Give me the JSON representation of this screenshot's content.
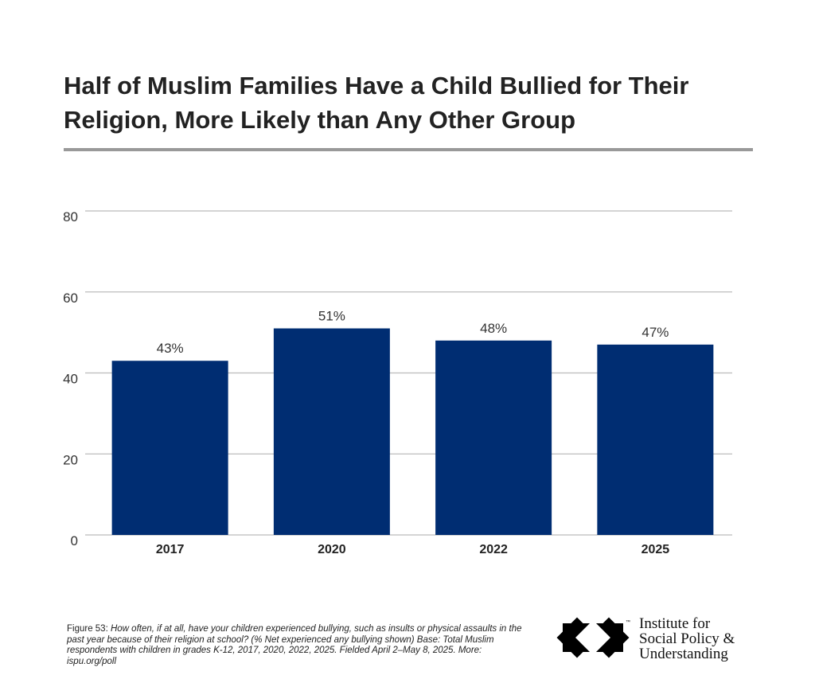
{
  "title": "Half of Muslim Families Have a Child Bullied for Their Religion, More Likely than Any Other Group",
  "chart_data": {
    "type": "bar",
    "categories": [
      "2017",
      "2020",
      "2022",
      "2025"
    ],
    "values": [
      43,
      51,
      48,
      47
    ],
    "data_labels": [
      "43%",
      "51%",
      "48%",
      "47%"
    ],
    "ylim": [
      0,
      80
    ],
    "yticks": [
      0,
      20,
      40,
      60,
      80
    ],
    "grid": true,
    "bar_color": "#002d72"
  },
  "footnote": {
    "label": "Figure 53:",
    "text": "How often, if at all, have your children experienced bullying, such as insults or physical assaults in the past year because of their religion at school? (% Net experienced any bullying shown) Base: Total Muslim respondents with children in grades K-12, 2017, 2020, 2022, 2025. Fielded April 2–May 8, 2025. More: ispu.org/poll"
  },
  "logo": {
    "lines": [
      "Institute for",
      "Social Policy &",
      "Understanding"
    ],
    "tm": "™"
  }
}
